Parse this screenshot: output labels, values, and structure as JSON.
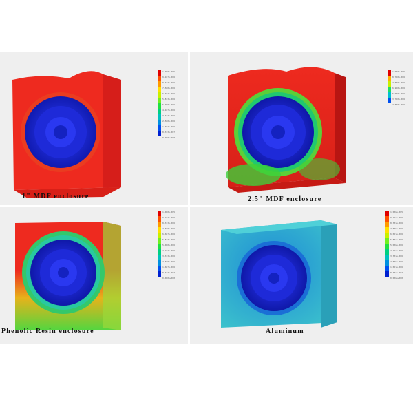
{
  "panels": [
    {
      "caption": "1\" MDF enclosure",
      "legend_values": [
        "1.000e-005",
        "9.167e-006",
        "8.333e-006",
        "7.500e-006",
        "6.667e-006",
        "5.833e-006",
        "5.000e-006",
        "4.167e-006",
        "3.333e-006",
        "2.500e-006",
        "1.667e-006",
        "8.333e-007",
        "0.000e+000"
      ]
    },
    {
      "caption": "2.5\" MDF enclosure",
      "legend_values": [
        "1.000e-005",
        "8.750e-006",
        "7.500e-006",
        "6.250e-006",
        "5.000e-006",
        "3.750e-006",
        "2.500e-006"
      ]
    },
    {
      "caption": "Phenolic Resin  enclosure",
      "legend_values": [
        "1.000e-005",
        "9.167e-006",
        "8.333e-006",
        "7.500e-006",
        "6.667e-006",
        "5.833e-006",
        "5.000e-006",
        "4.167e-006",
        "3.333e-006",
        "2.500e-006",
        "1.667e-006",
        "8.333e-007",
        "0.000e+000"
      ]
    },
    {
      "caption": "Aluminum",
      "legend_values": [
        "1.000e-005",
        "9.167e-006",
        "8.333e-006",
        "7.500e-006",
        "6.667e-006",
        "5.833e-006",
        "5.000e-006",
        "4.167e-006",
        "3.333e-006",
        "2.500e-006",
        "1.667e-006",
        "8.333e-007",
        "0.000e+000"
      ]
    }
  ]
}
